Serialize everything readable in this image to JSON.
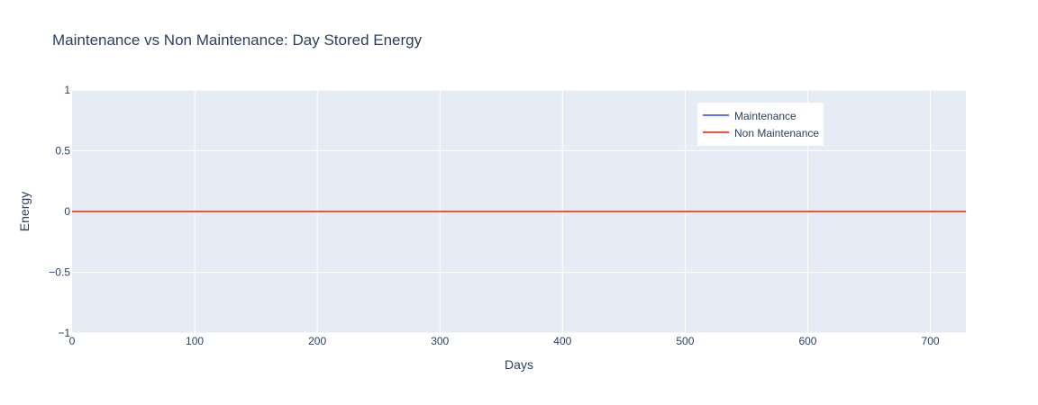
{
  "chart_data": {
    "type": "line",
    "title": "Maintenance vs Non Maintenance: Day Stored Energy",
    "xlabel": "Days",
    "ylabel": "Energy",
    "xlim": [
      0,
      729
    ],
    "ylim": [
      -1,
      1
    ],
    "x_ticks": [
      0,
      100,
      200,
      300,
      400,
      500,
      600,
      700
    ],
    "y_ticks": [
      1,
      0.5,
      0,
      -0.5,
      -1
    ],
    "y_tick_labels": [
      "1",
      "0.5",
      "0",
      "−0.5",
      "−1"
    ],
    "grid": true,
    "legend_position": "top-right",
    "series": [
      {
        "name": "Maintenance",
        "color": "#636efa",
        "x": [
          0,
          729
        ],
        "y": [
          0,
          0
        ]
      },
      {
        "name": "Non Maintenance",
        "color": "#ef553b",
        "x": [
          0,
          729
        ],
        "y": [
          0,
          0
        ]
      }
    ]
  },
  "colors": {
    "plot_background": "#e5ecf6",
    "grid": "#ffffff",
    "text": "#2a3f5f"
  }
}
